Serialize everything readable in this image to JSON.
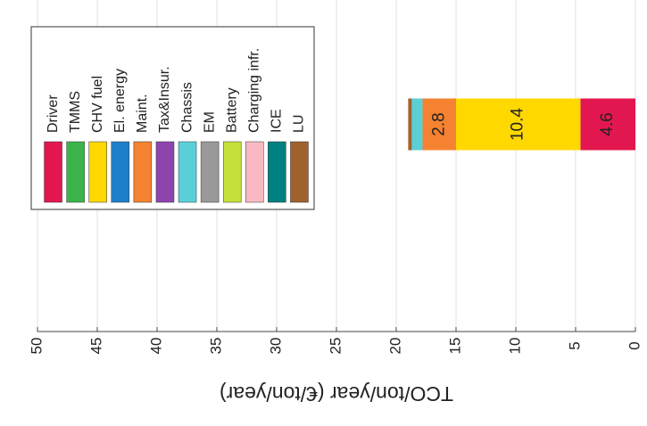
{
  "chart_data": {
    "type": "stacked-bar",
    "x_label": "TCO/ton/year (€/ton/year)",
    "categories": [
      null,
      null,
      null,
      null
    ],
    "xlim": [
      0,
      50
    ],
    "xticks": [
      0,
      5,
      10,
      15,
      20,
      25,
      30,
      35,
      40,
      45,
      50
    ],
    "grid": true,
    "series": [
      {
        "name": "Driver",
        "color": "#e3174f",
        "values": [
          null,
          null,
          4.6,
          null
        ]
      },
      {
        "name": "TMMS",
        "color": "#3cb44b",
        "values": [
          null,
          null,
          null,
          null
        ]
      },
      {
        "name": "CHV fuel",
        "color": "#ffd800",
        "values": [
          null,
          null,
          10.4,
          null
        ]
      },
      {
        "name": "El. energy",
        "color": "#1e7fc8",
        "values": [
          null,
          null,
          null,
          null
        ]
      },
      {
        "name": "Maint.",
        "color": "#f58231",
        "values": [
          null,
          null,
          2.8,
          null
        ]
      },
      {
        "name": "Tax&Insur.",
        "color": "#8e44ad",
        "values": [
          null,
          null,
          null,
          null
        ]
      },
      {
        "name": "Chassis",
        "color": "#5bcfd8",
        "values": [
          null,
          null,
          0.9,
          null
        ]
      },
      {
        "name": "EM",
        "color": "#999999",
        "values": [
          null,
          null,
          null,
          null
        ]
      },
      {
        "name": "Battery",
        "color": "#c5e03a",
        "values": [
          null,
          null,
          null,
          null
        ]
      },
      {
        "name": "Charging infr.",
        "color": "#f9b9c3",
        "values": [
          null,
          null,
          null,
          null
        ]
      },
      {
        "name": "ICE",
        "color": "#008080",
        "values": [
          null,
          null,
          null,
          null
        ]
      },
      {
        "name": "LU",
        "color": "#a0622d",
        "values": [
          null,
          null,
          0.3,
          null
        ]
      }
    ]
  }
}
